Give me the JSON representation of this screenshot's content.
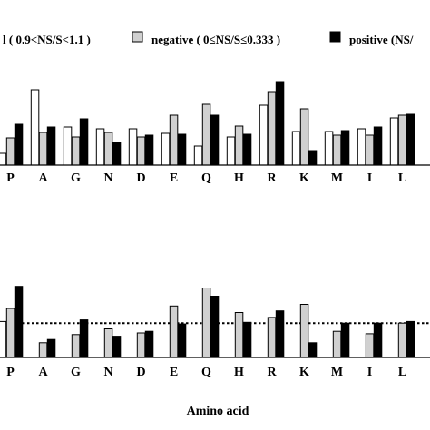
{
  "legend": [
    {
      "label": "l ( 0.9<NS/S<1.1 )",
      "fill": "#ffffff"
    },
    {
      "label": "negative ( 0≤NS/S≤0.333 )",
      "fill": "#d0d0d0"
    },
    {
      "label": "positive (NS/",
      "fill": "#000000"
    }
  ],
  "colors": {
    "neutral": "#ffffff",
    "negative": "#d0d0d0",
    "positive": "#000000",
    "stroke": "#000000"
  },
  "chart_data": [
    {
      "type": "bar",
      "categories": [
        "P",
        "A",
        "G",
        "N",
        "D",
        "E",
        "Q",
        "H",
        "R",
        "K",
        "M",
        "I",
        "L"
      ],
      "series": [
        {
          "name": "l ( 0.9<NS/S<1.1 )",
          "values": [
            13,
            83,
            42,
            40,
            40,
            35,
            21,
            31,
            66,
            37,
            37,
            40,
            52
          ]
        },
        {
          "name": "negative ( 0≤NS/S≤0.333 )",
          "values": [
            30,
            36,
            31,
            36,
            31,
            55,
            67,
            43,
            81,
            62,
            33,
            33,
            55
          ]
        },
        {
          "name": "positive (NS/",
          "values": [
            45,
            42,
            51,
            25,
            33,
            34,
            55,
            34,
            92,
            16,
            38,
            42,
            56
          ]
        }
      ],
      "ylim": [
        0,
        100
      ]
    },
    {
      "type": "bar",
      "categories": [
        "P",
        "A",
        "G",
        "N",
        "D",
        "E",
        "Q",
        "H",
        "R",
        "K",
        "M",
        "I",
        "L"
      ],
      "series": [
        {
          "name": "l ( 0.9<NS/S<1.1 )",
          "values": [
            44,
            0,
            0,
            0,
            0,
            0,
            0,
            0,
            0,
            0,
            0,
            0,
            0
          ]
        },
        {
          "name": "negative ( 0≤NS/S≤0.333 )",
          "values": [
            60,
            18,
            28,
            35,
            30,
            63,
            85,
            55,
            49,
            65,
            32,
            29,
            42
          ]
        },
        {
          "name": "positive (NS/",
          "values": [
            87,
            22,
            46,
            26,
            32,
            41,
            75,
            43,
            57,
            18,
            42,
            42,
            44
          ]
        }
      ],
      "reference_line": 42,
      "ylim": [
        0,
        100
      ],
      "xlabel": "Amino acid"
    }
  ]
}
